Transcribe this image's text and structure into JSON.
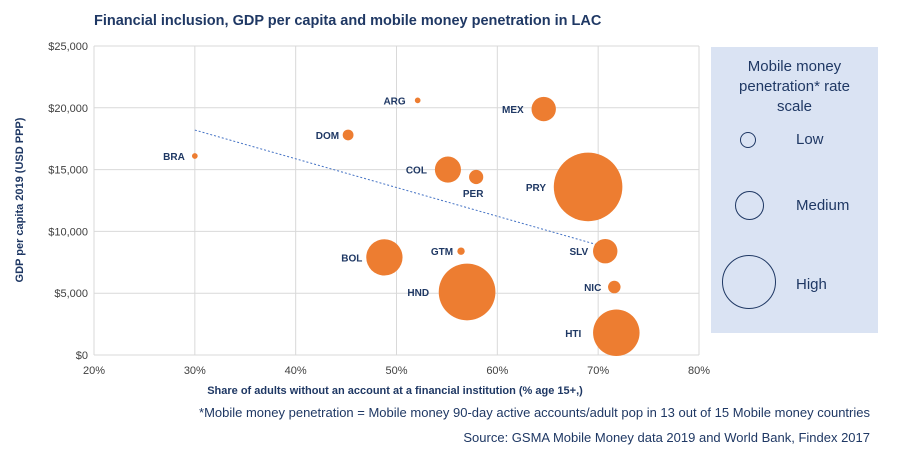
{
  "chart_data": {
    "type": "scatter",
    "title": "Financial inclusion, GDP per capita and mobile money penetration in LAC",
    "xlabel": "Share of adults without an account at a financial institution (% age 15+,)",
    "ylabel": "GDP per capita 2019 (USD PPP)",
    "xlim": [
      0.2,
      0.8
    ],
    "ylim": [
      0,
      25000
    ],
    "x_ticks": [
      "20%",
      "30%",
      "40%",
      "50%",
      "60%",
      "70%",
      "80%"
    ],
    "x_tick_values": [
      0.2,
      0.3,
      0.4,
      0.5,
      0.6,
      0.7,
      0.8
    ],
    "y_ticks": [
      "$0",
      "$5,000",
      "$10,000",
      "$15,000",
      "$20,000",
      "$25,000"
    ],
    "y_tick_values": [
      0,
      5000,
      10000,
      15000,
      20000,
      25000
    ],
    "grid": true,
    "trendline": {
      "style": "dotted",
      "color": "#4472c4",
      "x": [
        0.3,
        0.7
      ],
      "y": [
        18200,
        8900
      ]
    },
    "bubble_color": "#ed7d31",
    "points": [
      {
        "label": "BRA",
        "x": 0.3,
        "y": 16100,
        "size": 1
      },
      {
        "label": "ARG",
        "x": 0.521,
        "y": 20600,
        "size": 1
      },
      {
        "label": "DOM",
        "x": 0.452,
        "y": 17800,
        "size": 4
      },
      {
        "label": "MEX",
        "x": 0.646,
        "y": 19900,
        "size": 12
      },
      {
        "label": "COL",
        "x": 0.551,
        "y": 15000,
        "size": 13
      },
      {
        "label": "PER",
        "x": 0.579,
        "y": 14400,
        "size": 6
      },
      {
        "label": "PRY",
        "x": 0.69,
        "y": 13600,
        "size": 38
      },
      {
        "label": "BOL",
        "x": 0.488,
        "y": 7900,
        "size": 19
      },
      {
        "label": "GTM",
        "x": 0.564,
        "y": 8400,
        "size": 2
      },
      {
        "label": "SLV",
        "x": 0.707,
        "y": 8400,
        "size": 12
      },
      {
        "label": "HND",
        "x": 0.57,
        "y": 5100,
        "size": 31
      },
      {
        "label": "NIC",
        "x": 0.716,
        "y": 5500,
        "size": 5
      },
      {
        "label": "HTI",
        "x": 0.718,
        "y": 1800,
        "size": 25
      }
    ]
  },
  "legend": {
    "title_lines": [
      "Mobile money",
      "penetration* rate",
      "scale"
    ],
    "items": [
      {
        "label": "Low"
      },
      {
        "label": "Medium"
      },
      {
        "label": "High"
      }
    ]
  },
  "footnote": "*Mobile money penetration = Mobile money 90-day active accounts/adult pop in 13 out of 15 Mobile money countries",
  "source": "Source: GSMA Mobile Money data 2019 and World Bank, Findex 2017"
}
